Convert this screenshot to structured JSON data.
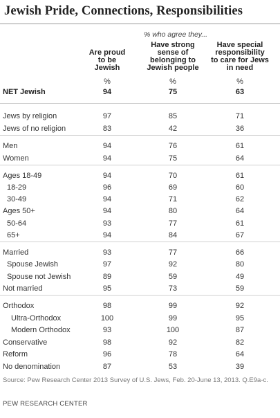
{
  "header": {
    "title": "Jewish Pride, Connections, Responsibilities",
    "agree_label": "% who agree they..."
  },
  "chart_data": {
    "type": "table",
    "title": "Jewish Pride, Connections, Responsibilities",
    "subtitle": "% who agree they...",
    "columns": [
      "Are proud to be Jewish",
      "Have strong sense of belonging to Jewish people",
      "Have special responsibility to care for Jews in need"
    ],
    "column_lines": [
      [
        "Are proud",
        "to be",
        "Jewish"
      ],
      [
        "Have strong",
        "sense of",
        "belonging to",
        "Jewish people"
      ],
      [
        "Have special",
        "responsibility",
        "to care for Jews",
        "in need"
      ]
    ],
    "unit": "%",
    "rows": [
      {
        "label": "NET Jewish",
        "values": [
          94,
          75,
          63
        ],
        "bold": true
      },
      {
        "label": "Jews by religion",
        "values": [
          97,
          85,
          71
        ]
      },
      {
        "label": "Jews of no religion",
        "values": [
          83,
          42,
          36
        ]
      },
      {
        "label": "Men",
        "values": [
          94,
          76,
          61
        ]
      },
      {
        "label": "Women",
        "values": [
          94,
          75,
          64
        ]
      },
      {
        "label": "Ages 18-49",
        "values": [
          94,
          70,
          61
        ]
      },
      {
        "label": "18-29",
        "values": [
          96,
          69,
          60
        ],
        "indent": 1
      },
      {
        "label": "30-49",
        "values": [
          94,
          71,
          62
        ],
        "indent": 1
      },
      {
        "label": "Ages 50+",
        "values": [
          94,
          80,
          64
        ]
      },
      {
        "label": "50-64",
        "values": [
          93,
          77,
          61
        ],
        "indent": 1
      },
      {
        "label": "65+",
        "values": [
          94,
          84,
          67
        ],
        "indent": 1
      },
      {
        "label": "Married",
        "values": [
          93,
          77,
          66
        ]
      },
      {
        "label": "Spouse Jewish",
        "values": [
          97,
          92,
          80
        ],
        "indent": 1
      },
      {
        "label": "Spouse not Jewish",
        "values": [
          89,
          59,
          49
        ],
        "indent": 1
      },
      {
        "label": "Not married",
        "values": [
          95,
          73,
          59
        ]
      },
      {
        "label": "Orthodox",
        "values": [
          98,
          99,
          92
        ]
      },
      {
        "label": "Ultra-Orthodox",
        "values": [
          100,
          99,
          95
        ],
        "indent": 2
      },
      {
        "label": "Modern Orthodox",
        "values": [
          93,
          100,
          87
        ],
        "indent": 2
      },
      {
        "label": "Conservative",
        "values": [
          98,
          92,
          82
        ]
      },
      {
        "label": "Reform",
        "values": [
          96,
          78,
          64
        ]
      },
      {
        "label": "No denomination",
        "values": [
          87,
          53,
          39
        ]
      }
    ]
  },
  "footer": {
    "source": "Source: Pew Research Center 2013 Survey of U.S. Jews, Feb. 20-June 13, 2013. Q.E9a-c.",
    "brand": "PEW RESEARCH CENTER"
  }
}
